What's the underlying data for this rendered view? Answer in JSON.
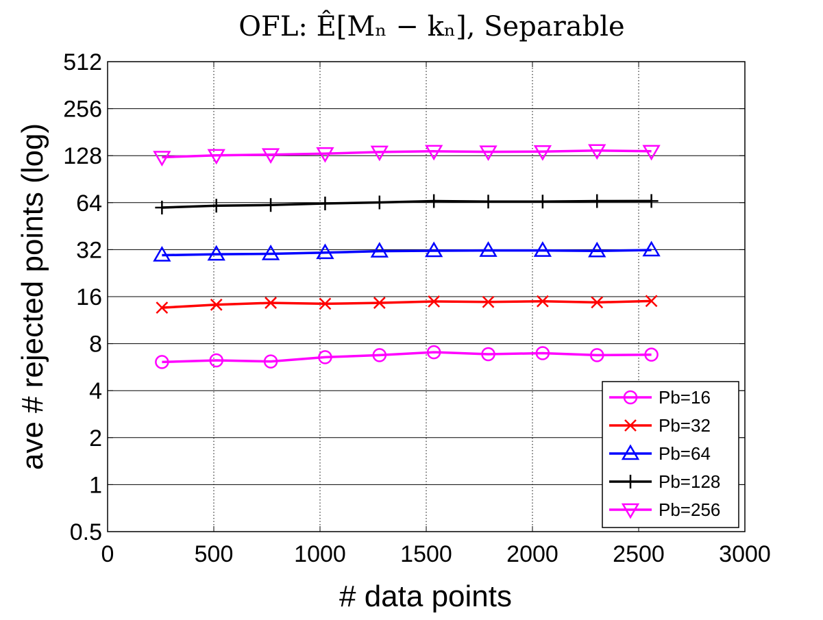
{
  "chart_data": {
    "type": "line",
    "title": "OFL: Ê[Mₙ − kₙ], Separable",
    "xlabel": "# data points",
    "ylabel": "ave # rejected points (log)",
    "y_scale": "log2",
    "xlim": [
      0,
      3000
    ],
    "ylim": [
      0.5,
      512
    ],
    "x_ticks": [
      0,
      500,
      1000,
      1500,
      2000,
      2500,
      3000
    ],
    "x_tick_labels": [
      "0",
      "500",
      "1000",
      "1500",
      "2000",
      "2500",
      "3000"
    ],
    "y_ticks": [
      0.5,
      1,
      2,
      4,
      8,
      16,
      32,
      64,
      128,
      256,
      512
    ],
    "y_tick_labels": [
      "0.5",
      "1",
      "2",
      "4",
      "8",
      "16",
      "32",
      "64",
      "128",
      "256",
      "512"
    ],
    "grid": {
      "x": "dotted",
      "y": "solid"
    },
    "legend_position": "bottom-right",
    "x": [
      256,
      512,
      768,
      1024,
      1280,
      1536,
      1792,
      2048,
      2304,
      2560
    ],
    "series": [
      {
        "name": "Pb=16",
        "color": "#ff00ff",
        "marker": "circle",
        "values": [
          6.1,
          6.25,
          6.15,
          6.55,
          6.75,
          7.05,
          6.85,
          6.95,
          6.75,
          6.8
        ]
      },
      {
        "name": "Pb=32",
        "color": "#ff0000",
        "marker": "x",
        "values": [
          13.6,
          14.2,
          14.6,
          14.4,
          14.6,
          14.9,
          14.8,
          14.95,
          14.7,
          15.0
        ]
      },
      {
        "name": "Pb=64",
        "color": "#0000ff",
        "marker": "triangle-up",
        "values": [
          29.5,
          29.9,
          30.1,
          30.6,
          31.3,
          31.5,
          31.6,
          31.6,
          31.4,
          31.8
        ]
      },
      {
        "name": "Pb=128",
        "color": "#000000",
        "marker": "plus",
        "values": [
          59.5,
          61.2,
          61.8,
          63.2,
          64.2,
          65.5,
          65.0,
          65.0,
          65.5,
          65.6
        ]
      },
      {
        "name": "Pb=256",
        "color": "#ff00ff",
        "marker": "triangle-down",
        "values": [
          125,
          128.5,
          130,
          132,
          135,
          136.5,
          135.5,
          136,
          138,
          136.5
        ]
      }
    ]
  }
}
